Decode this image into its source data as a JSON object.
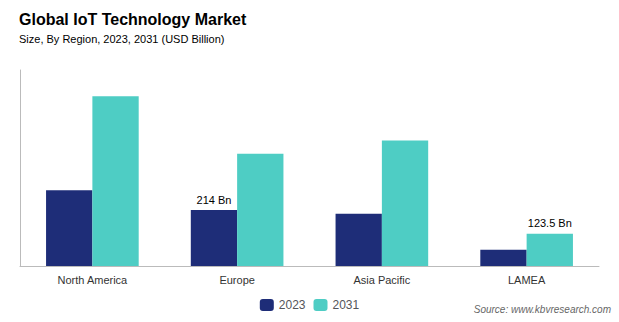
{
  "chart_data": {
    "type": "bar",
    "title": "Global IoT Technology Market",
    "subtitle": "Size, By Region, 2023, 2031 (USD Billion)",
    "categories": [
      "North America",
      "Europe",
      "Asia Pacific",
      "LAMEA"
    ],
    "series": [
      {
        "name": "2023",
        "color": "#1e2d78",
        "values": [
          290,
          214,
          200,
          62
        ]
      },
      {
        "name": "2031",
        "color": "#4ecdc4",
        "values": [
          650,
          430,
          480,
          123.5
        ]
      }
    ],
    "annotations": [
      {
        "text": "214 Bn",
        "series": "2023",
        "category": "Europe"
      },
      {
        "text": "123.5 Bn",
        "series": "2031",
        "category": "LAMEA"
      }
    ],
    "source": "Source: www.kbvresearch.com",
    "ylim": [
      0,
      750
    ],
    "tick_labels": "x",
    "grid": false,
    "legend": "bottom"
  }
}
